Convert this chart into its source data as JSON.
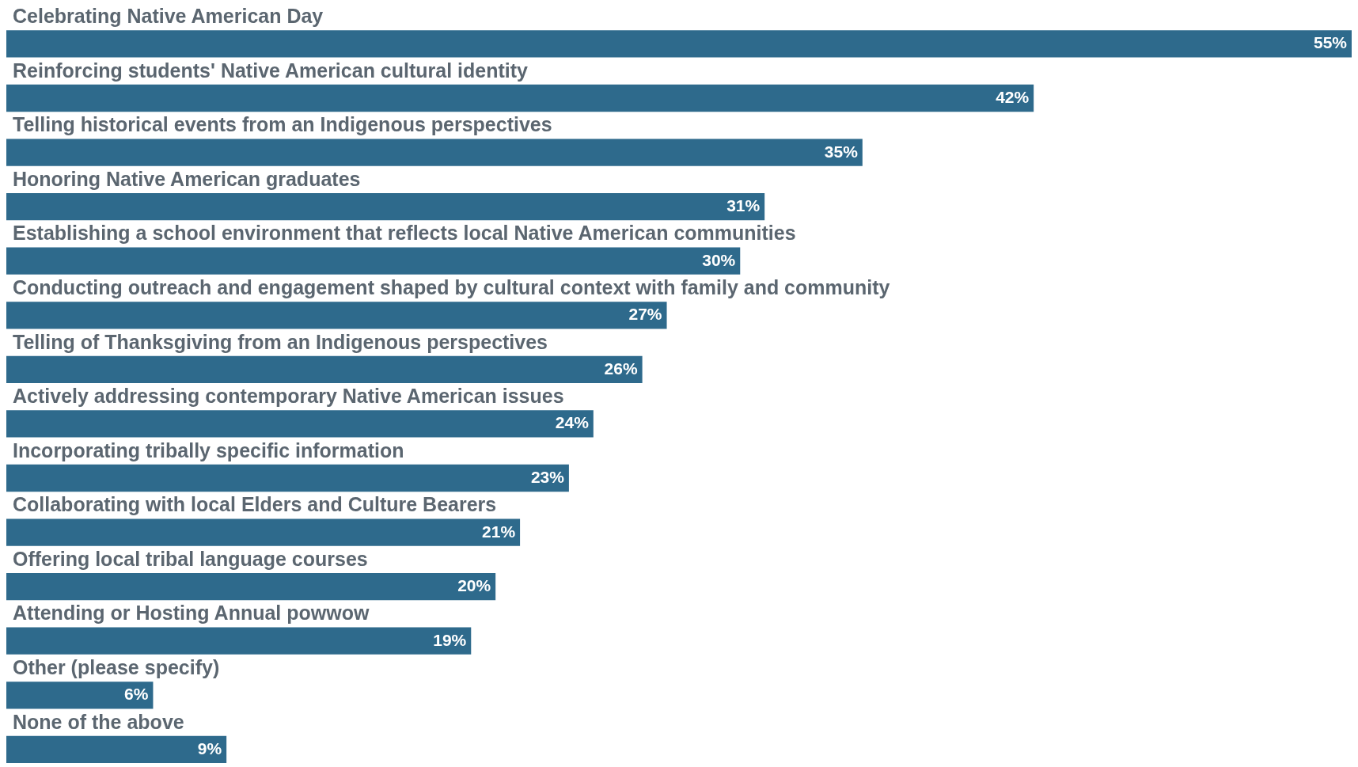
{
  "chart_data": {
    "type": "bar",
    "orientation": "horizontal",
    "color": "#2e6a8c",
    "categories": [
      "Celebrating Native American Day",
      "Reinforcing students' Native American cultural identity",
      "Telling historical events from an Indigenous perspectives",
      "Honoring Native American graduates",
      "Establishing a school environment that reflects local Native American communities",
      "Conducting outreach and engagement shaped by cultural context with family and community",
      "Telling of Thanksgiving from an Indigenous perspectives",
      "Actively addressing contemporary Native American issues",
      "Incorporating tribally specific information",
      "Collaborating with local Elders and Culture Bearers",
      "Offering local tribal language courses",
      "Attending or Hosting Annual powwow",
      "Other (please specify)",
      "None of the above"
    ],
    "values": [
      55,
      42,
      35,
      31,
      30,
      27,
      26,
      24,
      23,
      21,
      20,
      19,
      6,
      9
    ],
    "value_labels": [
      "55%",
      "42%",
      "35%",
      "31%",
      "30%",
      "27%",
      "26%",
      "24%",
      "23%",
      "21%",
      "20%",
      "19%",
      "6%",
      "9%"
    ]
  }
}
